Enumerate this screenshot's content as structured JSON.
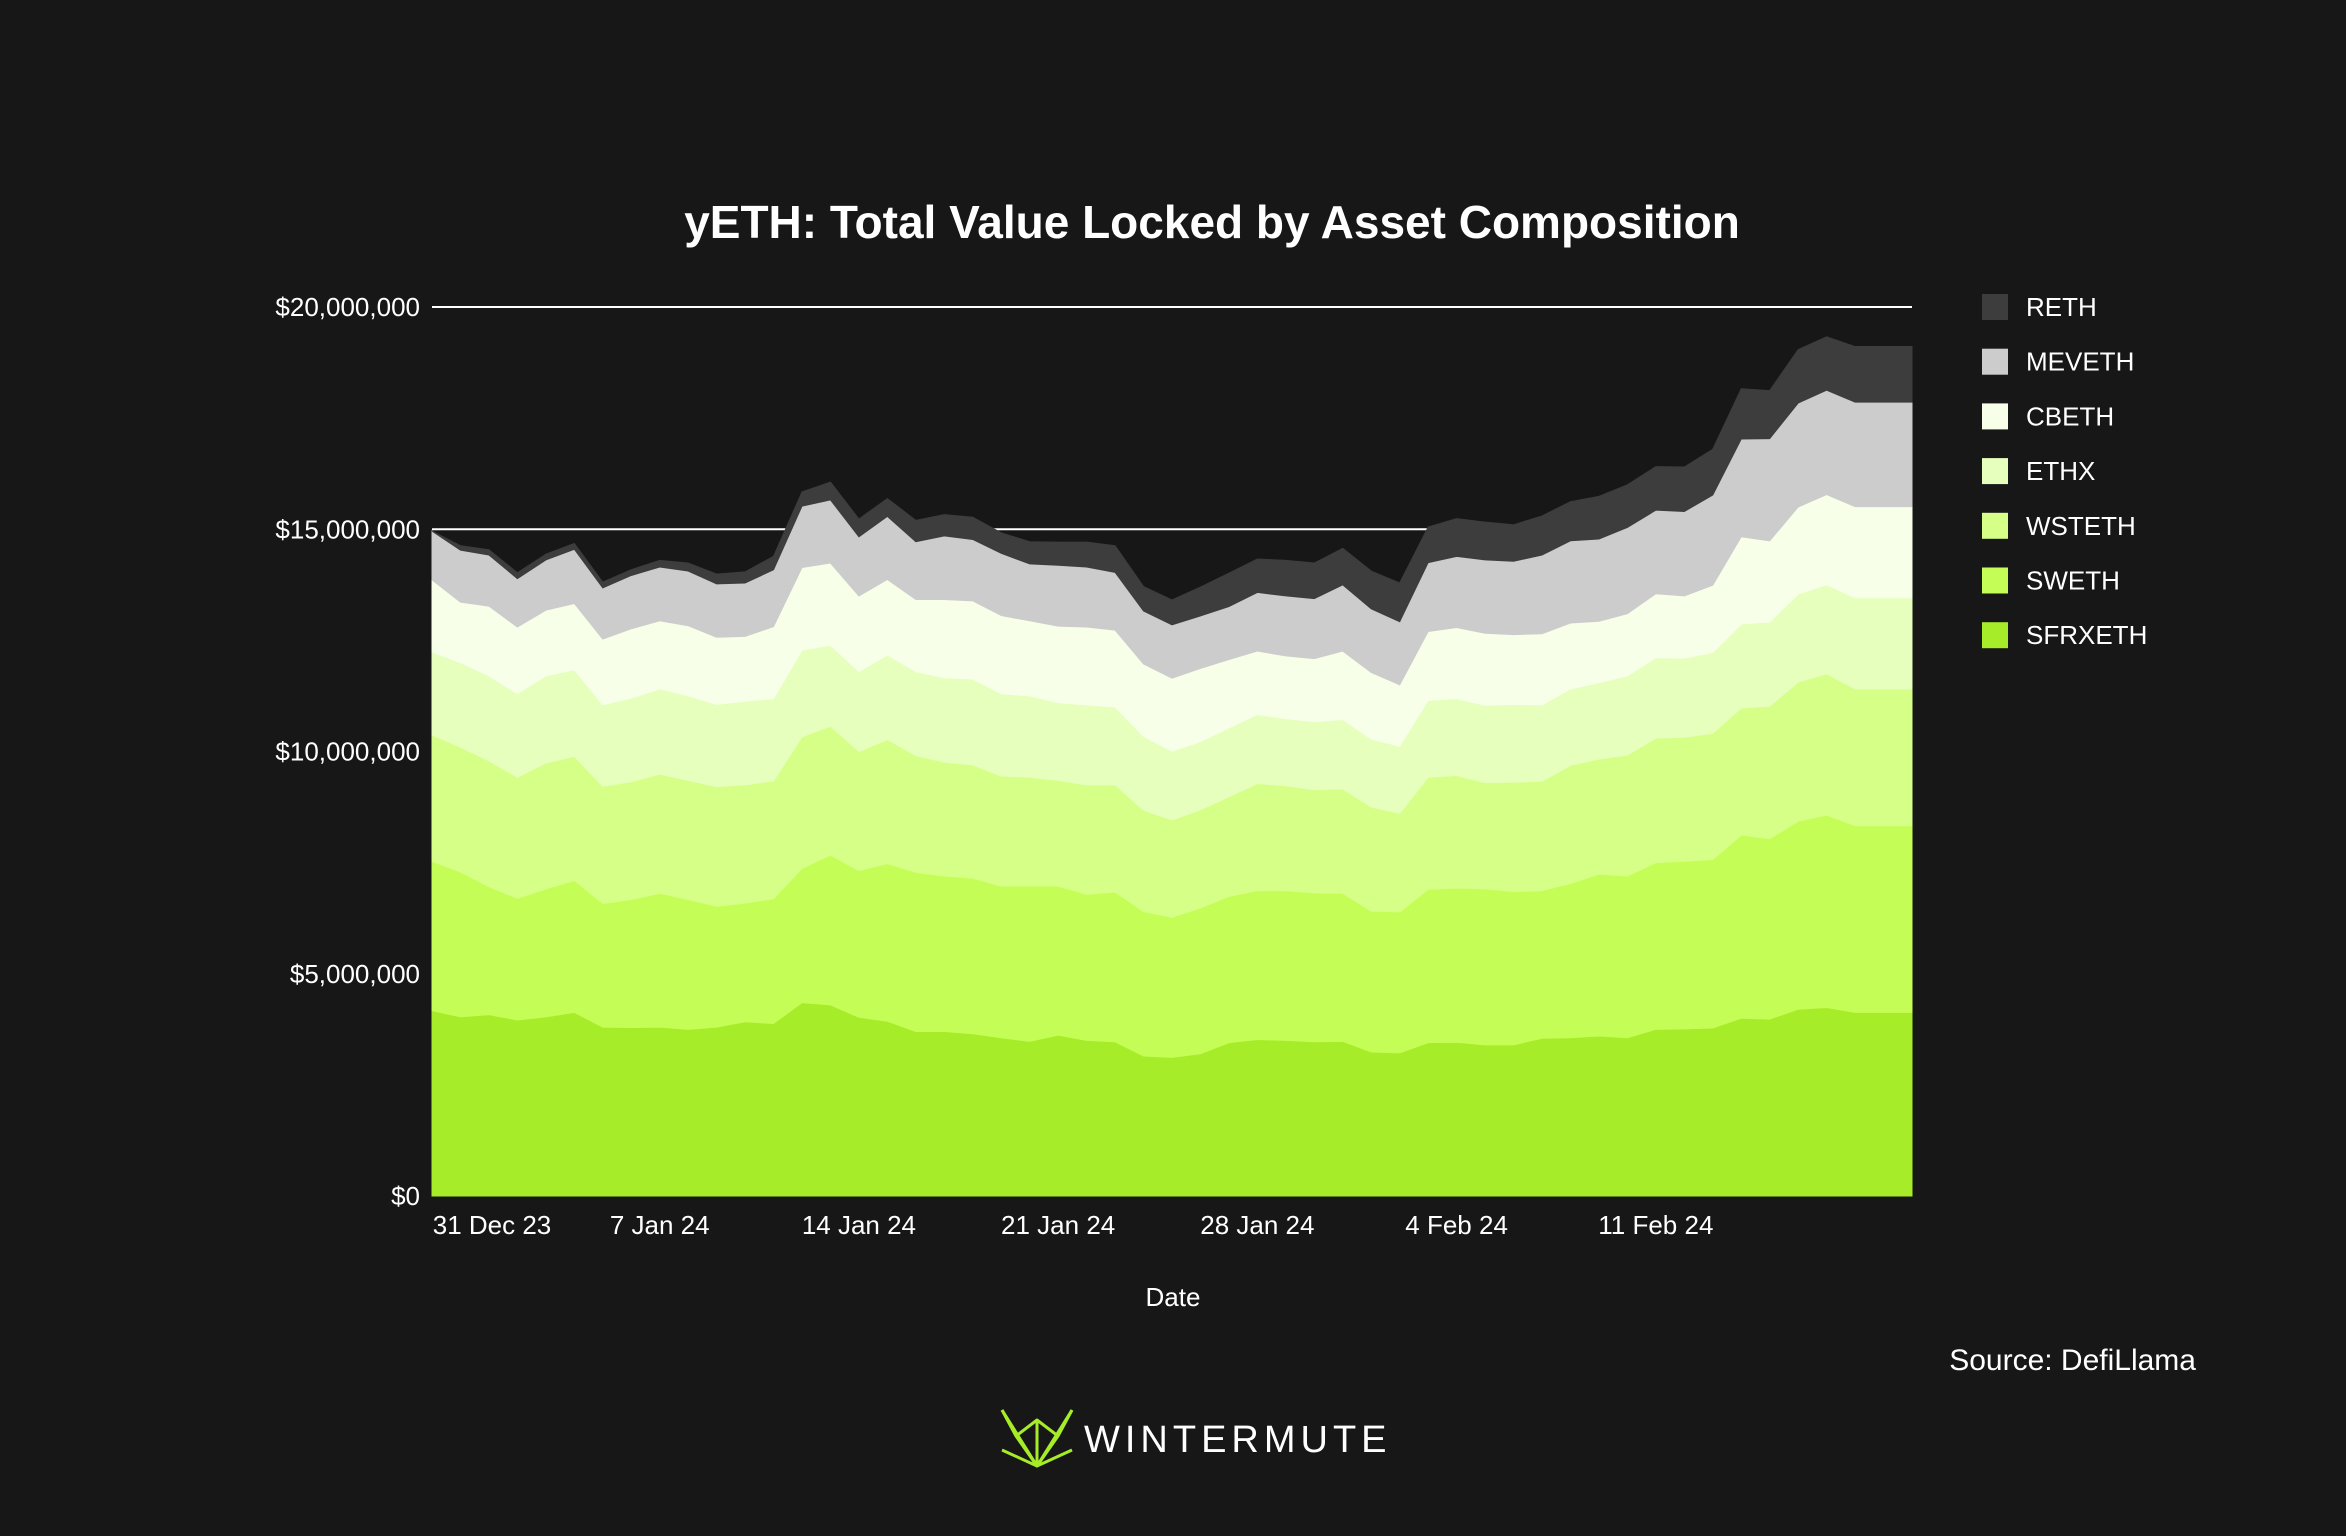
{
  "chart_data": {
    "type": "area",
    "stacked": true,
    "title": "yETH: Total Value Locked by Asset Composition",
    "xlabel": "Date",
    "ylabel": "",
    "ylim": [
      0,
      20000000
    ],
    "yticks": [
      0,
      5000000,
      10000000,
      15000000,
      20000000
    ],
    "ytick_labels": [
      "$0",
      "$5,000,000",
      "$10,000,000",
      "$15,000,000",
      "$20,000,000"
    ],
    "xticks": [
      "31 Dec 23",
      "7 Jan 24",
      "14 Jan 24",
      "21 Jan 24",
      "28 Jan 24",
      "4 Feb 24",
      "11 Feb 24"
    ],
    "grid": "horizontal at major ticks",
    "legend_position": "right",
    "x": [
      "2023-12-30",
      "2023-12-31",
      "2024-01-01",
      "2024-01-02",
      "2024-01-03",
      "2024-01-04",
      "2024-01-05",
      "2024-01-06",
      "2024-01-07",
      "2024-01-08",
      "2024-01-09",
      "2024-01-10",
      "2024-01-11",
      "2024-01-12",
      "2024-01-13",
      "2024-01-14",
      "2024-01-15",
      "2024-01-16",
      "2024-01-17",
      "2024-01-18",
      "2024-01-19",
      "2024-01-20",
      "2024-01-21",
      "2024-01-22",
      "2024-01-23",
      "2024-01-24",
      "2024-01-25",
      "2024-01-26",
      "2024-01-27",
      "2024-01-28",
      "2024-01-29",
      "2024-01-30",
      "2024-01-31",
      "2024-02-01",
      "2024-02-02",
      "2024-02-03",
      "2024-02-04",
      "2024-02-05",
      "2024-02-06",
      "2024-02-07",
      "2024-02-08",
      "2024-02-09",
      "2024-02-10",
      "2024-02-11",
      "2024-02-12",
      "2024-02-13",
      "2024-02-14",
      "2024-02-15",
      "2024-02-16",
      "2024-02-17",
      "2024-02-18",
      "2024-02-19",
      "2024-02-20"
    ],
    "series": [
      {
        "name": "SFRXETH",
        "color": "#a6ec28",
        "values": [
          4170000,
          4030000,
          4080000,
          3960000,
          4030000,
          4130000,
          3800000,
          3790000,
          3800000,
          3750000,
          3800000,
          3920000,
          3880000,
          4350000,
          4300000,
          4020000,
          3930000,
          3700000,
          3700000,
          3650000,
          3560000,
          3480000,
          3620000,
          3500000,
          3470000,
          3150000,
          3120000,
          3200000,
          3450000,
          3520000,
          3500000,
          3470000,
          3480000,
          3240000,
          3220000,
          3450000,
          3460000,
          3400000,
          3400000,
          3550000,
          3560000,
          3600000,
          3560000,
          3750000,
          3760000,
          3780000,
          4000000,
          3980000,
          4200000,
          4240000,
          4130000,
          4130000,
          4130000
        ]
      },
      {
        "name": "SWETH",
        "color": "#c4fd55",
        "values": [
          3360000,
          3260000,
          2880000,
          2740000,
          2880000,
          2970000,
          2780000,
          2880000,
          3010000,
          2920000,
          2720000,
          2670000,
          2810000,
          3020000,
          3370000,
          3300000,
          3550000,
          3580000,
          3500000,
          3500000,
          3410000,
          3500000,
          3350000,
          3290000,
          3370000,
          3250000,
          3150000,
          3280000,
          3290000,
          3350000,
          3370000,
          3350000,
          3330000,
          3170000,
          3170000,
          3450000,
          3470000,
          3510000,
          3450000,
          3320000,
          3470000,
          3640000,
          3640000,
          3750000,
          3770000,
          3790000,
          4120000,
          4060000,
          4230000,
          4330000,
          4200000,
          4200000,
          4200000
        ]
      },
      {
        "name": "WSTETH",
        "color": "#d6ff87",
        "values": [
          2840000,
          2810000,
          2830000,
          2720000,
          2830000,
          2790000,
          2640000,
          2650000,
          2680000,
          2680000,
          2690000,
          2660000,
          2650000,
          2960000,
          2900000,
          2680000,
          2790000,
          2630000,
          2560000,
          2550000,
          2480000,
          2440000,
          2380000,
          2460000,
          2410000,
          2280000,
          2190000,
          2210000,
          2240000,
          2410000,
          2360000,
          2320000,
          2350000,
          2340000,
          2220000,
          2520000,
          2530000,
          2390000,
          2460000,
          2460000,
          2660000,
          2590000,
          2720000,
          2800000,
          2790000,
          2840000,
          2860000,
          2980000,
          3130000,
          3180000,
          3080000,
          3080000,
          3080000
        ]
      },
      {
        "name": "ETHX",
        "color": "#e6ffbc",
        "values": [
          1870000,
          1900000,
          1910000,
          1880000,
          1960000,
          1950000,
          1830000,
          1880000,
          1920000,
          1900000,
          1850000,
          1880000,
          1850000,
          1950000,
          1820000,
          1800000,
          1900000,
          1890000,
          1900000,
          1930000,
          1850000,
          1830000,
          1750000,
          1800000,
          1750000,
          1660000,
          1550000,
          1530000,
          1550000,
          1550000,
          1510000,
          1530000,
          1560000,
          1530000,
          1510000,
          1730000,
          1730000,
          1740000,
          1750000,
          1720000,
          1720000,
          1720000,
          1780000,
          1810000,
          1780000,
          1820000,
          1890000,
          1890000,
          1980000,
          2000000,
          2050000,
          2050000,
          2050000
        ]
      },
      {
        "name": "CBETH",
        "color": "#f7ffe8",
        "values": [
          1620000,
          1360000,
          1570000,
          1500000,
          1480000,
          1490000,
          1480000,
          1560000,
          1530000,
          1580000,
          1510000,
          1460000,
          1620000,
          1860000,
          1850000,
          1700000,
          1700000,
          1620000,
          1760000,
          1760000,
          1760000,
          1690000,
          1720000,
          1750000,
          1730000,
          1630000,
          1640000,
          1650000,
          1540000,
          1430000,
          1410000,
          1420000,
          1540000,
          1500000,
          1380000,
          1550000,
          1600000,
          1620000,
          1570000,
          1600000,
          1480000,
          1380000,
          1400000,
          1440000,
          1400000,
          1510000,
          1960000,
          1830000,
          1960000,
          2030000,
          2050000,
          2050000,
          2050000
        ]
      },
      {
        "name": "MEVETH",
        "color": "#cccccc",
        "values": [
          1100000,
          1170000,
          1150000,
          1090000,
          1130000,
          1220000,
          1150000,
          1200000,
          1210000,
          1230000,
          1200000,
          1200000,
          1280000,
          1380000,
          1420000,
          1330000,
          1420000,
          1300000,
          1430000,
          1380000,
          1400000,
          1280000,
          1370000,
          1350000,
          1300000,
          1190000,
          1200000,
          1180000,
          1190000,
          1320000,
          1350000,
          1350000,
          1490000,
          1430000,
          1420000,
          1550000,
          1600000,
          1650000,
          1650000,
          1770000,
          1850000,
          1850000,
          1940000,
          1880000,
          1900000,
          2030000,
          2200000,
          2300000,
          2340000,
          2350000,
          2350000,
          2350000,
          2350000
        ]
      },
      {
        "name": "RETH",
        "color": "#3d3d3d",
        "values": [
          0,
          100000,
          120000,
          130000,
          130000,
          130000,
          130000,
          130000,
          150000,
          180000,
          220000,
          250000,
          300000,
          320000,
          400000,
          400000,
          400000,
          480000,
          480000,
          500000,
          460000,
          500000,
          520000,
          560000,
          600000,
          550000,
          560000,
          650000,
          750000,
          750000,
          800000,
          800000,
          820000,
          850000,
          870000,
          800000,
          850000,
          850000,
          820000,
          880000,
          880000,
          960000,
          960000,
          980000,
          1000000,
          1030000,
          1130000,
          1080000,
          1200000,
          1200000,
          1250000,
          1250000,
          1250000
        ]
      }
    ]
  },
  "source_text": "Source: DefiLlama",
  "brand_text": "WINTERMUTE"
}
